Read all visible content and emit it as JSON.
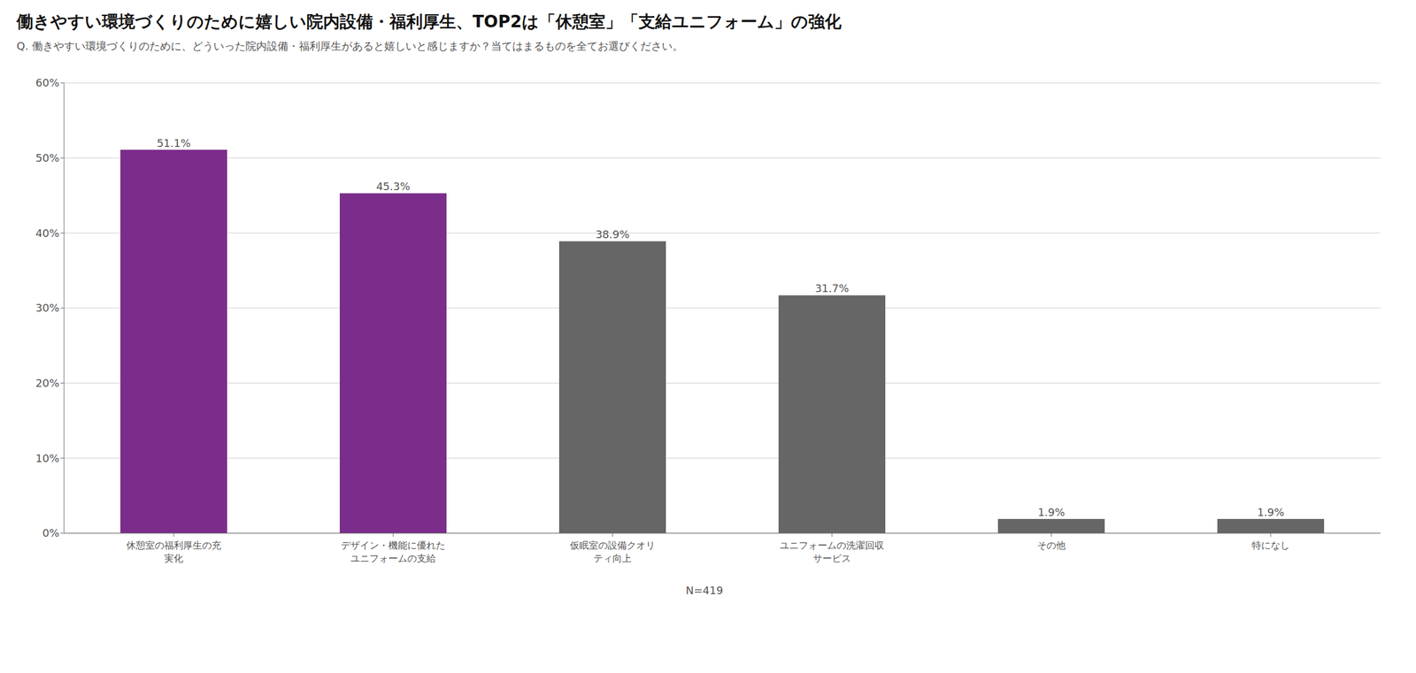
{
  "chart_data": {
    "type": "bar",
    "title": "働きやすい環境づくりのために嬉しい院内設備・福利厚生、TOP2は「休憩室」「支給ユニフォーム」の強化",
    "subtitle": "Q. 働きやすい環境づくりのために、どういった院内設備・福利厚生があると嬉しいと感じますか？当てはまるものを全てお選びください。",
    "annotations": [
      "N=419"
    ],
    "categories": [
      "休憩室の福利厚生の充\n実化",
      "デザイン・機能に優れた\nユニフォームの支給",
      "仮眠室の設備クオリ\nティ向上",
      "ユニフォームの洗濯回収\nサービス",
      "その他",
      "特になし"
    ],
    "values": [
      51.1,
      45.3,
      38.9,
      31.7,
      1.9,
      1.9
    ],
    "value_labels": [
      "51.1%",
      "45.3%",
      "38.9%",
      "31.7%",
      "1.9%",
      "1.9%"
    ],
    "colors": [
      "#7b2d8b",
      "#7b2d8b",
      "#666666",
      "#666666",
      "#666666",
      "#666666"
    ],
    "ylim": [
      0,
      60
    ],
    "yticks": [
      {
        "value": 0,
        "label": "0%"
      },
      {
        "value": 10,
        "label": "10%"
      },
      {
        "value": 20,
        "label": "20%"
      },
      {
        "value": 30,
        "label": "30%"
      },
      {
        "value": 40,
        "label": "40%"
      },
      {
        "value": 50,
        "label": "50%"
      },
      {
        "value": 60,
        "label": "60%"
      }
    ],
    "grid": true,
    "data_labels": true
  }
}
